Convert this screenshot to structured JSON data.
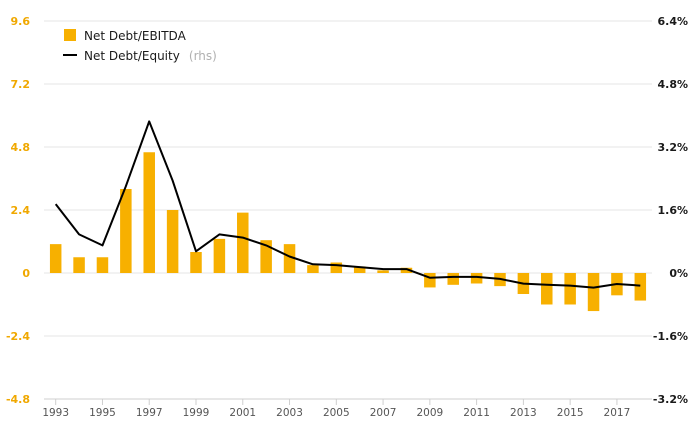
{
  "chart_data": {
    "type": "bar",
    "categories": [
      "1993",
      "1994",
      "1995",
      "1996",
      "1997",
      "1998",
      "1999",
      "2000",
      "2001",
      "2002",
      "2003",
      "2004",
      "2005",
      "2006",
      "2007",
      "2008",
      "2009",
      "2010",
      "2011",
      "2012",
      "2013",
      "2014",
      "2015",
      "2016",
      "2017",
      "2018"
    ],
    "x_tick_labels": [
      "1993",
      "1995",
      "1997",
      "1999",
      "2001",
      "2003",
      "2005",
      "2007",
      "2009",
      "2011",
      "2013",
      "2015",
      "2017"
    ],
    "series": [
      {
        "name": "Net Debt/EBITDA",
        "type": "bar",
        "axis": "left",
        "color": "#f7b000",
        "values": [
          1.1,
          0.6,
          0.6,
          3.2,
          4.6,
          2.4,
          0.8,
          1.3,
          2.3,
          1.25,
          1.1,
          0.3,
          0.4,
          0.25,
          0.1,
          0.2,
          -0.55,
          -0.45,
          -0.4,
          -0.5,
          -0.8,
          -1.2,
          -1.2,
          -1.45,
          -0.85,
          -1.05
        ]
      },
      {
        "name": "Net Debt/Equity",
        "name_suffix": "(rhs)",
        "type": "line",
        "axis": "right",
        "color": "#000000",
        "values": [
          1.75,
          0.98,
          0.7,
          2.2,
          3.85,
          2.35,
          0.55,
          0.98,
          0.9,
          0.7,
          0.42,
          0.22,
          0.2,
          0.15,
          0.1,
          0.1,
          -0.12,
          -0.1,
          -0.1,
          -0.15,
          -0.27,
          -0.3,
          -0.32,
          -0.37,
          -0.28,
          -0.32
        ]
      }
    ],
    "ylim_left": [
      -4.8,
      9.6
    ],
    "ylim_right": [
      -3.2,
      6.4
    ],
    "yticks_left": [
      "9.6",
      "7.2",
      "4.8",
      "2.4",
      "0",
      "-2.4",
      "-4.8"
    ],
    "yticks_right": [
      "6.4%",
      "4.8%",
      "3.2%",
      "1.6%",
      "0%",
      "-1.6%",
      "-3.2%"
    ],
    "title": "",
    "xlabel": "",
    "ylabel": "",
    "grid": true,
    "legend": "top-left"
  }
}
